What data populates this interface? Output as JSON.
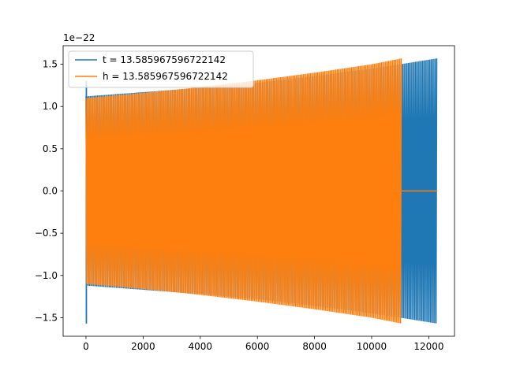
{
  "chart_data": {
    "type": "line",
    "title": "",
    "xlabel": "",
    "ylabel": "",
    "y_offset_label": "1e−22",
    "xlim": [
      -800,
      12900
    ],
    "ylim": [
      -1.72,
      1.72
    ],
    "x_ticks": [
      0,
      2000,
      4000,
      6000,
      8000,
      10000,
      12000
    ],
    "x_tick_labels": [
      "0",
      "2000",
      "4000",
      "6000",
      "8000",
      "10000",
      "12000"
    ],
    "y_ticks": [
      -1.5,
      -1.0,
      -0.5,
      0.0,
      0.5,
      1.0,
      1.5
    ],
    "y_tick_labels": [
      "−1.5",
      "−1.0",
      "−0.5",
      "0.0",
      "0.5",
      "1.0",
      "1.5"
    ],
    "grid": false,
    "legend_position": "upper-left",
    "series": [
      {
        "name": "t = 13.585967596722142",
        "color": "#1f77b4",
        "description": "oscillating signal",
        "envelope_x": [
          0,
          2000,
          4000,
          6000,
          8000,
          10000,
          11000,
          12300
        ],
        "envelope_y": [
          1.12,
          1.17,
          1.22,
          1.28,
          1.36,
          1.45,
          1.5,
          1.57
        ],
        "spike_x": 0,
        "spike_y": [
          -1.57,
          1.3
        ],
        "x_end": 12300
      },
      {
        "name": "h = 13.585967596722142",
        "color": "#ff7f0e",
        "description": "oscillating signal",
        "envelope_x": [
          0,
          2000,
          4000,
          6000,
          8000,
          10000,
          11050
        ],
        "envelope_y": [
          1.1,
          1.16,
          1.23,
          1.31,
          1.4,
          1.5,
          1.57
        ],
        "x_end": 11050,
        "flat_after_x": [
          11050,
          12300
        ],
        "flat_value": 0.0
      }
    ]
  }
}
